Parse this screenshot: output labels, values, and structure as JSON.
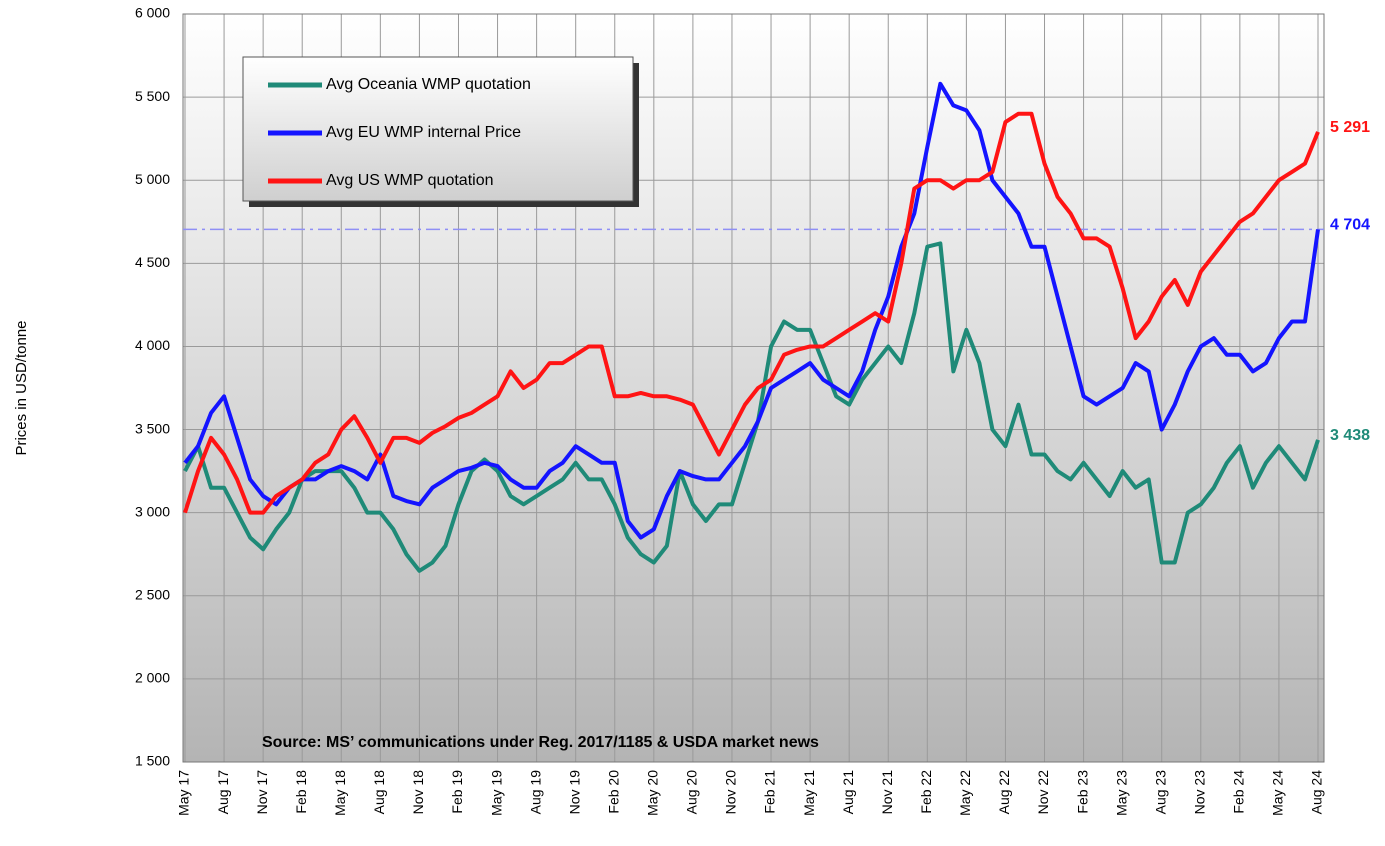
{
  "chart_data": {
    "type": "line",
    "y_label": "Prices in USD/tonne",
    "annotation": "Source: MS’ communications under Reg. 2017/1185  & USDA market news",
    "categories": [
      "May 17",
      null,
      null,
      "Aug 17",
      null,
      null,
      "Nov 17",
      null,
      null,
      "Feb 18",
      null,
      null,
      "May 18",
      null,
      null,
      "Aug 18",
      null,
      null,
      "Nov 18",
      null,
      null,
      "Feb 19",
      null,
      null,
      "May 19",
      null,
      null,
      "Aug 19",
      null,
      null,
      "Nov 19",
      null,
      null,
      "Feb 20",
      null,
      null,
      "May 20",
      null,
      null,
      "Aug 20",
      null,
      null,
      "Nov 20",
      null,
      null,
      "Feb 21",
      null,
      null,
      "May 21",
      null,
      null,
      "Aug 21",
      null,
      null,
      "Nov 21",
      null,
      null,
      "Feb 22",
      null,
      null,
      "May 22",
      null,
      null,
      "Aug 22",
      null,
      null,
      "Nov 22",
      null,
      null,
      "Feb 23",
      null,
      null,
      "May 23",
      null,
      null,
      "Aug 23",
      null,
      null,
      "Nov 23",
      null,
      null,
      "Feb 24",
      null,
      null,
      "May 24",
      null,
      null,
      "Aug 24"
    ],
    "series": [
      {
        "name": "Avg Oceania WMP quotation",
        "color": "#1f8a78",
        "values": [
          3250,
          3400,
          3150,
          3150,
          3000,
          2850,
          2780,
          2900,
          3000,
          3200,
          3250,
          3250,
          3250,
          3150,
          3000,
          3000,
          2900,
          2750,
          2650,
          2700,
          2800,
          3050,
          3250,
          3320,
          3250,
          3100,
          3050,
          3100,
          3150,
          3200,
          3300,
          3200,
          3200,
          3050,
          2850,
          2750,
          2700,
          2800,
          3250,
          3050,
          2950,
          3050,
          3050,
          3300,
          3550,
          4000,
          4150,
          4100,
          4100,
          3900,
          3700,
          3650,
          3800,
          3900,
          4000,
          3900,
          4200,
          4600,
          4620,
          3850,
          4100,
          3900,
          3500,
          3400,
          3650,
          3350,
          3350,
          3250,
          3200,
          3300,
          3200,
          3100,
          3250,
          3150,
          3200,
          2700,
          2700,
          3000,
          3050,
          3150,
          3300,
          3400,
          3150,
          3300,
          3400,
          3300,
          3200,
          3438
        ],
        "value_labels": [
          null,
          null,
          null,
          null,
          null,
          null,
          null,
          null,
          null,
          null,
          null,
          null,
          null,
          null,
          null,
          null,
          null,
          null,
          null,
          null,
          null,
          null,
          null,
          null,
          null,
          null,
          null,
          null,
          null,
          null,
          null,
          null,
          null,
          null,
          null,
          null,
          null,
          null,
          null,
          null,
          null,
          null,
          null,
          null,
          null,
          null,
          null,
          null,
          null,
          null,
          null,
          null,
          null,
          null,
          null,
          null,
          null,
          null,
          null,
          null,
          null,
          null,
          null,
          null,
          null,
          null,
          null,
          null,
          null,
          null,
          null,
          null,
          null,
          null,
          null,
          null,
          null,
          null,
          null,
          null,
          null,
          null,
          null,
          null,
          null,
          null,
          null,
          "3 438"
        ]
      },
      {
        "name": "Avg EU WMP internal Price",
        "color": "#1414ff",
        "values": [
          3300,
          3400,
          3600,
          3700,
          3450,
          3200,
          3100,
          3050,
          3150,
          3200,
          3200,
          3250,
          3280,
          3250,
          3200,
          3350,
          3100,
          3070,
          3050,
          3150,
          3200,
          3250,
          3270,
          3300,
          3280,
          3200,
          3150,
          3150,
          3250,
          3300,
          3400,
          3350,
          3300,
          3300,
          2950,
          2850,
          2900,
          3100,
          3250,
          3220,
          3200,
          3200,
          3300,
          3400,
          3550,
          3750,
          3800,
          3850,
          3900,
          3800,
          3750,
          3700,
          3850,
          4100,
          4300,
          4600,
          4800,
          5200,
          5580,
          5450,
          5420,
          5300,
          5000,
          4900,
          4800,
          4600,
          4600,
          4300,
          4000,
          3700,
          3650,
          3700,
          3750,
          3900,
          3850,
          3500,
          3650,
          3850,
          4000,
          4050,
          3950,
          3950,
          3850,
          3900,
          4050,
          4150,
          4150,
          4704
        ],
        "value_labels": [
          null,
          null,
          null,
          null,
          null,
          null,
          null,
          null,
          null,
          null,
          null,
          null,
          null,
          null,
          null,
          null,
          null,
          null,
          null,
          null,
          null,
          null,
          null,
          null,
          null,
          null,
          null,
          null,
          null,
          null,
          null,
          null,
          null,
          null,
          null,
          null,
          null,
          null,
          null,
          null,
          null,
          null,
          null,
          null,
          null,
          null,
          null,
          null,
          null,
          null,
          null,
          null,
          null,
          null,
          null,
          null,
          null,
          null,
          null,
          null,
          null,
          null,
          null,
          null,
          null,
          null,
          null,
          null,
          null,
          null,
          null,
          null,
          null,
          null,
          null,
          null,
          null,
          null,
          null,
          null,
          null,
          null,
          null,
          null,
          null,
          null,
          null,
          "4 704"
        ]
      },
      {
        "name": "Avg US WMP quotation",
        "color": "#ff1414",
        "values": [
          3000,
          3250,
          3450,
          3350,
          3200,
          3000,
          3000,
          3100,
          3150,
          3200,
          3300,
          3350,
          3500,
          3580,
          3450,
          3300,
          3450,
          3450,
          3420,
          3480,
          3520,
          3570,
          3600,
          3650,
          3700,
          3850,
          3750,
          3800,
          3900,
          3900,
          3950,
          4000,
          4000,
          3700,
          3700,
          3720,
          3700,
          3700,
          3680,
          3650,
          3500,
          3350,
          3500,
          3650,
          3750,
          3800,
          3950,
          3980,
          4000,
          4000,
          4050,
          4100,
          4150,
          4200,
          4150,
          4500,
          4950,
          5000,
          5000,
          4950,
          5000,
          5000,
          5050,
          5350,
          5400,
          5400,
          5100,
          4900,
          4800,
          4650,
          4650,
          4600,
          4350,
          4050,
          4150,
          4300,
          4400,
          4250,
          4450,
          4550,
          4650,
          4750,
          4800,
          4900,
          5000,
          5050,
          5100,
          5291
        ],
        "value_labels": [
          null,
          null,
          null,
          null,
          null,
          null,
          null,
          null,
          null,
          null,
          null,
          null,
          null,
          null,
          null,
          null,
          null,
          null,
          null,
          null,
          null,
          null,
          null,
          null,
          null,
          null,
          null,
          null,
          null,
          null,
          null,
          null,
          null,
          null,
          null,
          null,
          null,
          null,
          null,
          null,
          null,
          null,
          null,
          null,
          null,
          null,
          null,
          null,
          null,
          null,
          null,
          null,
          null,
          null,
          null,
          null,
          null,
          null,
          null,
          null,
          null,
          null,
          null,
          null,
          null,
          null,
          null,
          null,
          null,
          null,
          null,
          null,
          null,
          null,
          null,
          null,
          null,
          null,
          null,
          null,
          null,
          null,
          null,
          null,
          null,
          null,
          null,
          "5 291"
        ]
      }
    ],
    "ylim": [
      1500,
      6000
    ],
    "yticks": [
      {
        "value": 1500,
        "label": "1 500"
      },
      {
        "value": 2000,
        "label": "2 000"
      },
      {
        "value": 2500,
        "label": "2 500"
      },
      {
        "value": 3000,
        "label": "3 000"
      },
      {
        "value": 3500,
        "label": "3 500"
      },
      {
        "value": 4000,
        "label": "4 000"
      },
      {
        "value": 4500,
        "label": "4 500"
      },
      {
        "value": 5000,
        "label": "5 000"
      },
      {
        "value": 5500,
        "label": "5 500"
      },
      {
        "value": 6000,
        "label": "6 000"
      }
    ],
    "grid": true
  }
}
